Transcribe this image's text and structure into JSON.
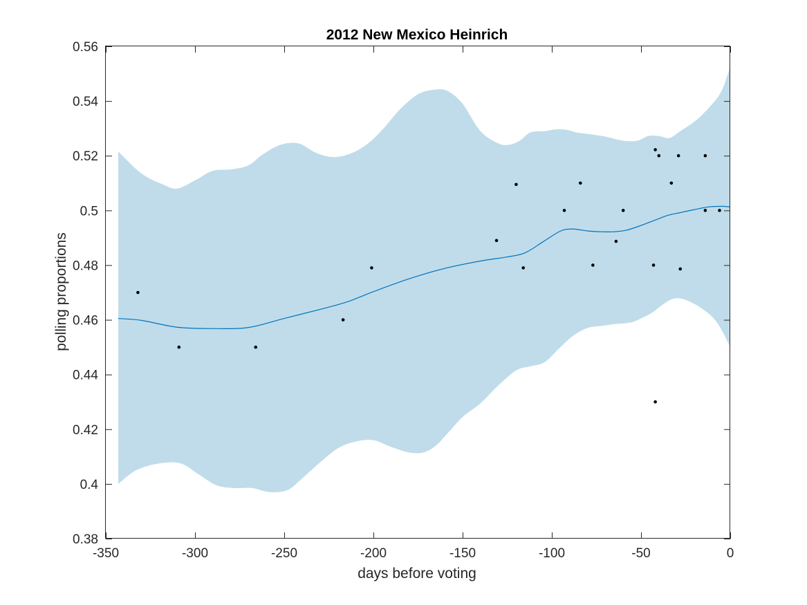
{
  "chart_data": {
    "type": "scatter",
    "title": "2012 New Mexico Heinrich",
    "xlabel": "days before voting",
    "ylabel": "polling proportions",
    "xlim": [
      -350,
      0
    ],
    "ylim": [
      0.38,
      0.56
    ],
    "xticks": [
      -350,
      -300,
      -250,
      -200,
      -150,
      -100,
      -50,
      0
    ],
    "xtick_labels": [
      "-350",
      "-300",
      "-250",
      "-200",
      "-150",
      "-100",
      "-50",
      "0"
    ],
    "yticks": [
      0.38,
      0.4,
      0.42,
      0.44,
      0.46,
      0.48,
      0.5,
      0.52,
      0.54,
      0.56
    ],
    "ytick_labels": [
      "0.38",
      "0.4",
      "0.42",
      "0.44",
      "0.46",
      "0.48",
      "0.5",
      "0.52",
      "0.54",
      "0.56"
    ],
    "grid": false,
    "colors": {
      "band": "#c0dcea",
      "trend": "#0072bd",
      "points": "#000000"
    },
    "points": {
      "x": [
        -332,
        -309,
        -266,
        -217,
        -201,
        -131,
        -120,
        -116,
        -93,
        -84,
        -77,
        -64,
        -60,
        -43,
        -42,
        -42,
        -40,
        -33,
        -29,
        -28,
        -14,
        -14,
        -6
      ],
      "y": [
        0.47,
        0.45,
        0.45,
        0.46,
        0.479,
        0.489,
        0.5095,
        0.479,
        0.5,
        0.51,
        0.48,
        0.4887,
        0.5,
        0.48,
        0.5222,
        0.43,
        0.52,
        0.51,
        0.52,
        0.4786,
        0.52,
        0.5,
        0.5
      ]
    },
    "trend": {
      "x": [
        -343,
        -330,
        -310,
        -290,
        -270,
        -250,
        -230,
        -215,
        -200,
        -180,
        -160,
        -140,
        -125,
        -115,
        -105,
        -95,
        -88,
        -80,
        -72,
        -65,
        -58,
        -50,
        -42,
        -35,
        -28,
        -20,
        -12,
        -5,
        0
      ],
      "y": [
        0.4605,
        0.4598,
        0.4573,
        0.4568,
        0.4572,
        0.4605,
        0.4638,
        0.4665,
        0.4703,
        0.475,
        0.4788,
        0.4815,
        0.483,
        0.4845,
        0.4885,
        0.4925,
        0.4932,
        0.4925,
        0.4922,
        0.4922,
        0.4928,
        0.4945,
        0.4965,
        0.4982,
        0.4992,
        0.5003,
        0.5013,
        0.5015,
        0.5013
      ]
    },
    "band_upper": {
      "x": [
        -343,
        -330,
        -318,
        -310,
        -300,
        -290,
        -280,
        -270,
        -262,
        -252,
        -242,
        -232,
        -222,
        -212,
        -203,
        -195,
        -185,
        -175,
        -165,
        -158,
        -150,
        -140,
        -130,
        -124,
        -118,
        -112,
        -104,
        -98,
        -92,
        -86,
        -80,
        -70,
        -60,
        -52,
        -46,
        -40,
        -34,
        -28,
        -20,
        -12,
        -5,
        0
      ],
      "y": [
        0.5215,
        0.5135,
        0.5095,
        0.508,
        0.511,
        0.5145,
        0.515,
        0.5165,
        0.5205,
        0.524,
        0.5245,
        0.521,
        0.5195,
        0.521,
        0.5245,
        0.5295,
        0.537,
        0.5425,
        0.5442,
        0.5435,
        0.539,
        0.529,
        0.5245,
        0.524,
        0.5255,
        0.5285,
        0.529,
        0.5296,
        0.5295,
        0.5285,
        0.528,
        0.527,
        0.5255,
        0.5255,
        0.5272,
        0.5272,
        0.5265,
        0.529,
        0.5325,
        0.5375,
        0.5435,
        0.5525
      ]
    },
    "band_lower": {
      "x": [
        -343,
        -333,
        -320,
        -308,
        -298,
        -288,
        -278,
        -268,
        -258,
        -248,
        -240,
        -230,
        -220,
        -210,
        -200,
        -190,
        -180,
        -172,
        -165,
        -158,
        -150,
        -140,
        -130,
        -120,
        -112,
        -104,
        -96,
        -88,
        -80,
        -72,
        -64,
        -56,
        -50,
        -44,
        -38,
        -32,
        -26,
        -18,
        -10,
        -5,
        0
      ],
      "y": [
        0.4,
        0.405,
        0.4075,
        0.4075,
        0.4035,
        0.3995,
        0.3985,
        0.3985,
        0.397,
        0.3978,
        0.402,
        0.4078,
        0.413,
        0.4155,
        0.416,
        0.4135,
        0.4115,
        0.4115,
        0.414,
        0.4188,
        0.4245,
        0.4295,
        0.436,
        0.4415,
        0.443,
        0.4445,
        0.4495,
        0.4542,
        0.457,
        0.4578,
        0.4585,
        0.459,
        0.4605,
        0.4625,
        0.4655,
        0.4677,
        0.4675,
        0.465,
        0.461,
        0.4565,
        0.45
      ]
    }
  }
}
